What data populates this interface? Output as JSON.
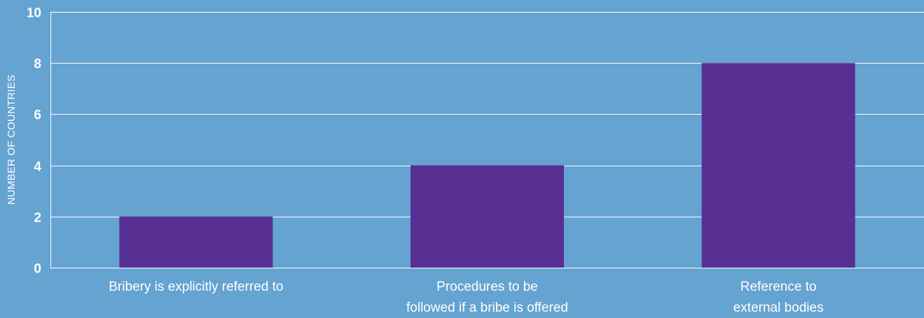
{
  "colors": {
    "background": "#65a3d1",
    "bar": "#582f92",
    "grid": "#ffffff",
    "text": "#ffffff"
  },
  "chart_data": {
    "type": "bar",
    "title": "",
    "xlabel": "",
    "ylabel": "NUMBER OF COUNTRIES",
    "categories": [
      "Bribery is explicitly referred to",
      "Procedures to be followed if a bribe is offered",
      "Reference to external bodies"
    ],
    "category_label_lines": [
      [
        "Bribery is explicitly referred to"
      ],
      [
        "Procedures to be",
        "followed if a bribe is offered"
      ],
      [
        "Reference to",
        "external bodies"
      ]
    ],
    "values": [
      2,
      4,
      8
    ],
    "ylim": [
      0,
      10
    ],
    "yticks": [
      0,
      2,
      4,
      6,
      8,
      10
    ],
    "grid": true,
    "legend": "none"
  }
}
